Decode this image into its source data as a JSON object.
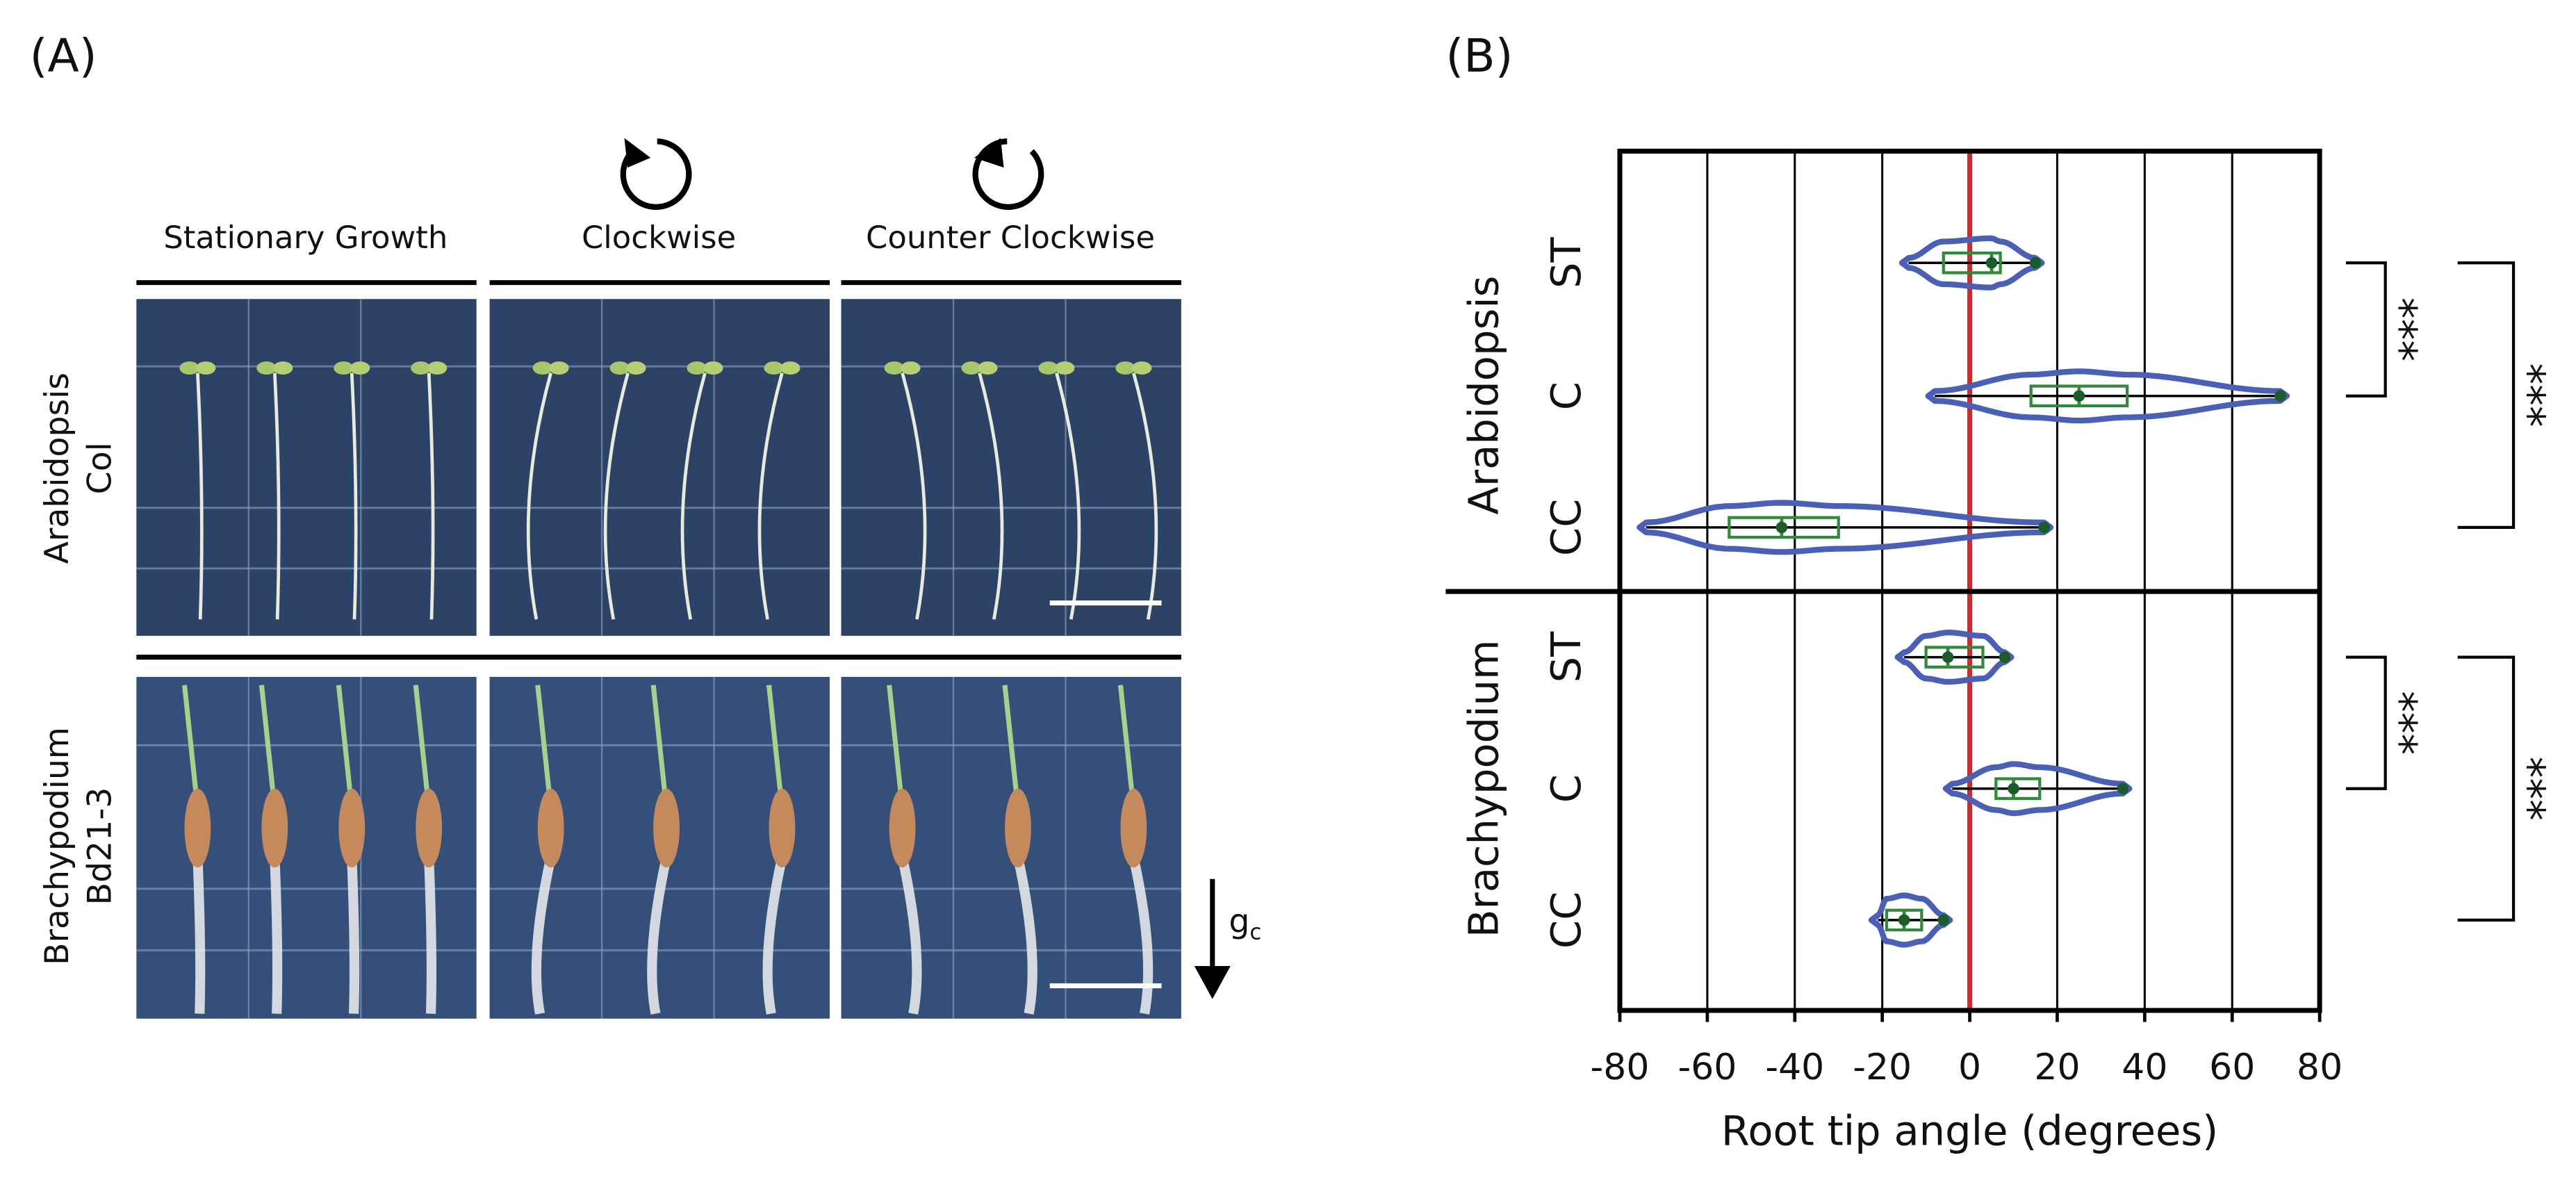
{
  "panel_a": {
    "label": "(A)",
    "columns": [
      "Stationary Growth",
      "Clockwise",
      "Counter Clockwise"
    ],
    "rows": [
      {
        "species": "Arabidopsis",
        "line": "Col"
      },
      {
        "species": "Brachypodium",
        "line": "Bd21-3"
      }
    ],
    "gravity": {
      "symbol": "g",
      "subscript": "c"
    }
  },
  "panel_b": {
    "label": "(B)"
  },
  "chart_data": {
    "type": "violin",
    "xlabel": "Root tip angle (degrees)",
    "xlim": [
      -80,
      80
    ],
    "xticks": [
      -80,
      -60,
      -40,
      -20,
      0,
      20,
      40,
      60,
      80
    ],
    "grid": true,
    "reference_x": 0,
    "reference_color": "#d62728",
    "violin_color": "#4a5fb8",
    "box_color": "#2e8b3a",
    "groups": [
      {
        "name": "Arabidopsis",
        "categories": [
          "ST",
          "C",
          "CC"
        ],
        "min": [
          -14,
          -8,
          -74
        ],
        "q1": [
          -6,
          14,
          -55
        ],
        "median": [
          5,
          25,
          -43
        ],
        "q3": [
          7,
          36,
          -30
        ],
        "max": [
          15,
          71,
          17
        ]
      },
      {
        "name": "Brachypodium",
        "categories": [
          "ST",
          "C",
          "CC"
        ],
        "min": [
          -15,
          -4,
          -21
        ],
        "q1": [
          -10,
          6,
          -19
        ],
        "median": [
          -5,
          10,
          -15
        ],
        "q3": [
          3,
          16,
          -11
        ],
        "max": [
          8,
          35,
          -6
        ]
      }
    ],
    "significance": [
      "***",
      "***",
      "***",
      "***"
    ]
  }
}
